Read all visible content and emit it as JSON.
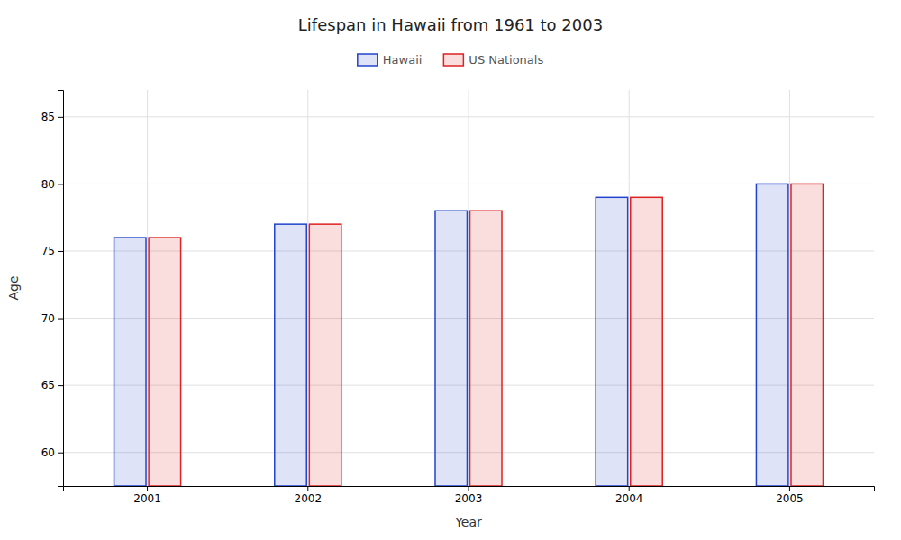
{
  "chart_data": {
    "type": "bar",
    "title": "Lifespan in Hawaii from 1961 to 2003",
    "xlabel": "Year",
    "ylabel": "Age",
    "categories": [
      "2001",
      "2002",
      "2003",
      "2004",
      "2005"
    ],
    "series": [
      {
        "name": "Hawaii",
        "color": "#2244cc",
        "values": [
          76,
          77,
          78,
          79,
          80
        ]
      },
      {
        "name": "US Nationals",
        "color": "#dd2222",
        "values": [
          76,
          77,
          78,
          79,
          80
        ]
      }
    ],
    "ylim": [
      57.5,
      87
    ],
    "yticks": [
      60,
      65,
      70,
      75,
      80,
      85
    ],
    "grid": true,
    "legend": "top"
  }
}
